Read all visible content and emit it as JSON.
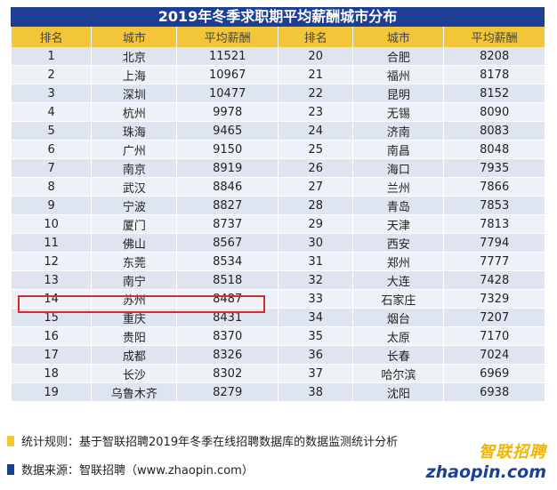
{
  "title": "2019年冬季求职期平均薪酬城市分布",
  "headers": [
    "排名",
    "城市",
    "平均薪酬",
    "排名",
    "城市",
    "平均薪酬"
  ],
  "rows": [
    [
      "1",
      "北京",
      "11521",
      "20",
      "合肥",
      "8208"
    ],
    [
      "2",
      "上海",
      "10967",
      "21",
      "福州",
      "8178"
    ],
    [
      "3",
      "深圳",
      "10477",
      "22",
      "昆明",
      "8152"
    ],
    [
      "4",
      "杭州",
      "9978",
      "23",
      "无锡",
      "8090"
    ],
    [
      "5",
      "珠海",
      "9465",
      "24",
      "济南",
      "8083"
    ],
    [
      "6",
      "广州",
      "9150",
      "25",
      "南昌",
      "8048"
    ],
    [
      "7",
      "南京",
      "8919",
      "26",
      "海口",
      "7935"
    ],
    [
      "8",
      "武汉",
      "8846",
      "27",
      "兰州",
      "7866"
    ],
    [
      "9",
      "宁波",
      "8827",
      "28",
      "青岛",
      "7853"
    ],
    [
      "10",
      "厦门",
      "8737",
      "29",
      "天津",
      "7813"
    ],
    [
      "11",
      "佛山",
      "8567",
      "30",
      "西安",
      "7794"
    ],
    [
      "12",
      "东莞",
      "8534",
      "31",
      "郑州",
      "7777"
    ],
    [
      "13",
      "南宁",
      "8518",
      "32",
      "大连",
      "7428"
    ],
    [
      "14",
      "苏州",
      "8487",
      "33",
      "石家庄",
      "7329"
    ],
    [
      "15",
      "重庆",
      "8431",
      "34",
      "烟台",
      "7207"
    ],
    [
      "16",
      "贵阳",
      "8370",
      "35",
      "太原",
      "7170"
    ],
    [
      "17",
      "成都",
      "8326",
      "36",
      "长春",
      "7024"
    ],
    [
      "18",
      "长沙",
      "8302",
      "37",
      "哈尔滨",
      "6969"
    ],
    [
      "19",
      "乌鲁木齐",
      "8279",
      "38",
      "沈阳",
      "6938"
    ]
  ],
  "notes": {
    "rule": "统计规则：基于智联招聘2019年冬季在线招聘数据库的数据监测统计分析",
    "source": "数据来源：智联招聘（www.zhaopin.com）"
  },
  "logo": {
    "cn": "智联招聘",
    "en": "zhaopin.com"
  },
  "colors": {
    "title_bg": "#1c3f94",
    "header_bg": "#f3c63a",
    "highlight": "#d62b2b",
    "row_a": "#dfe5f0",
    "row_b": "#eef1f7"
  }
}
